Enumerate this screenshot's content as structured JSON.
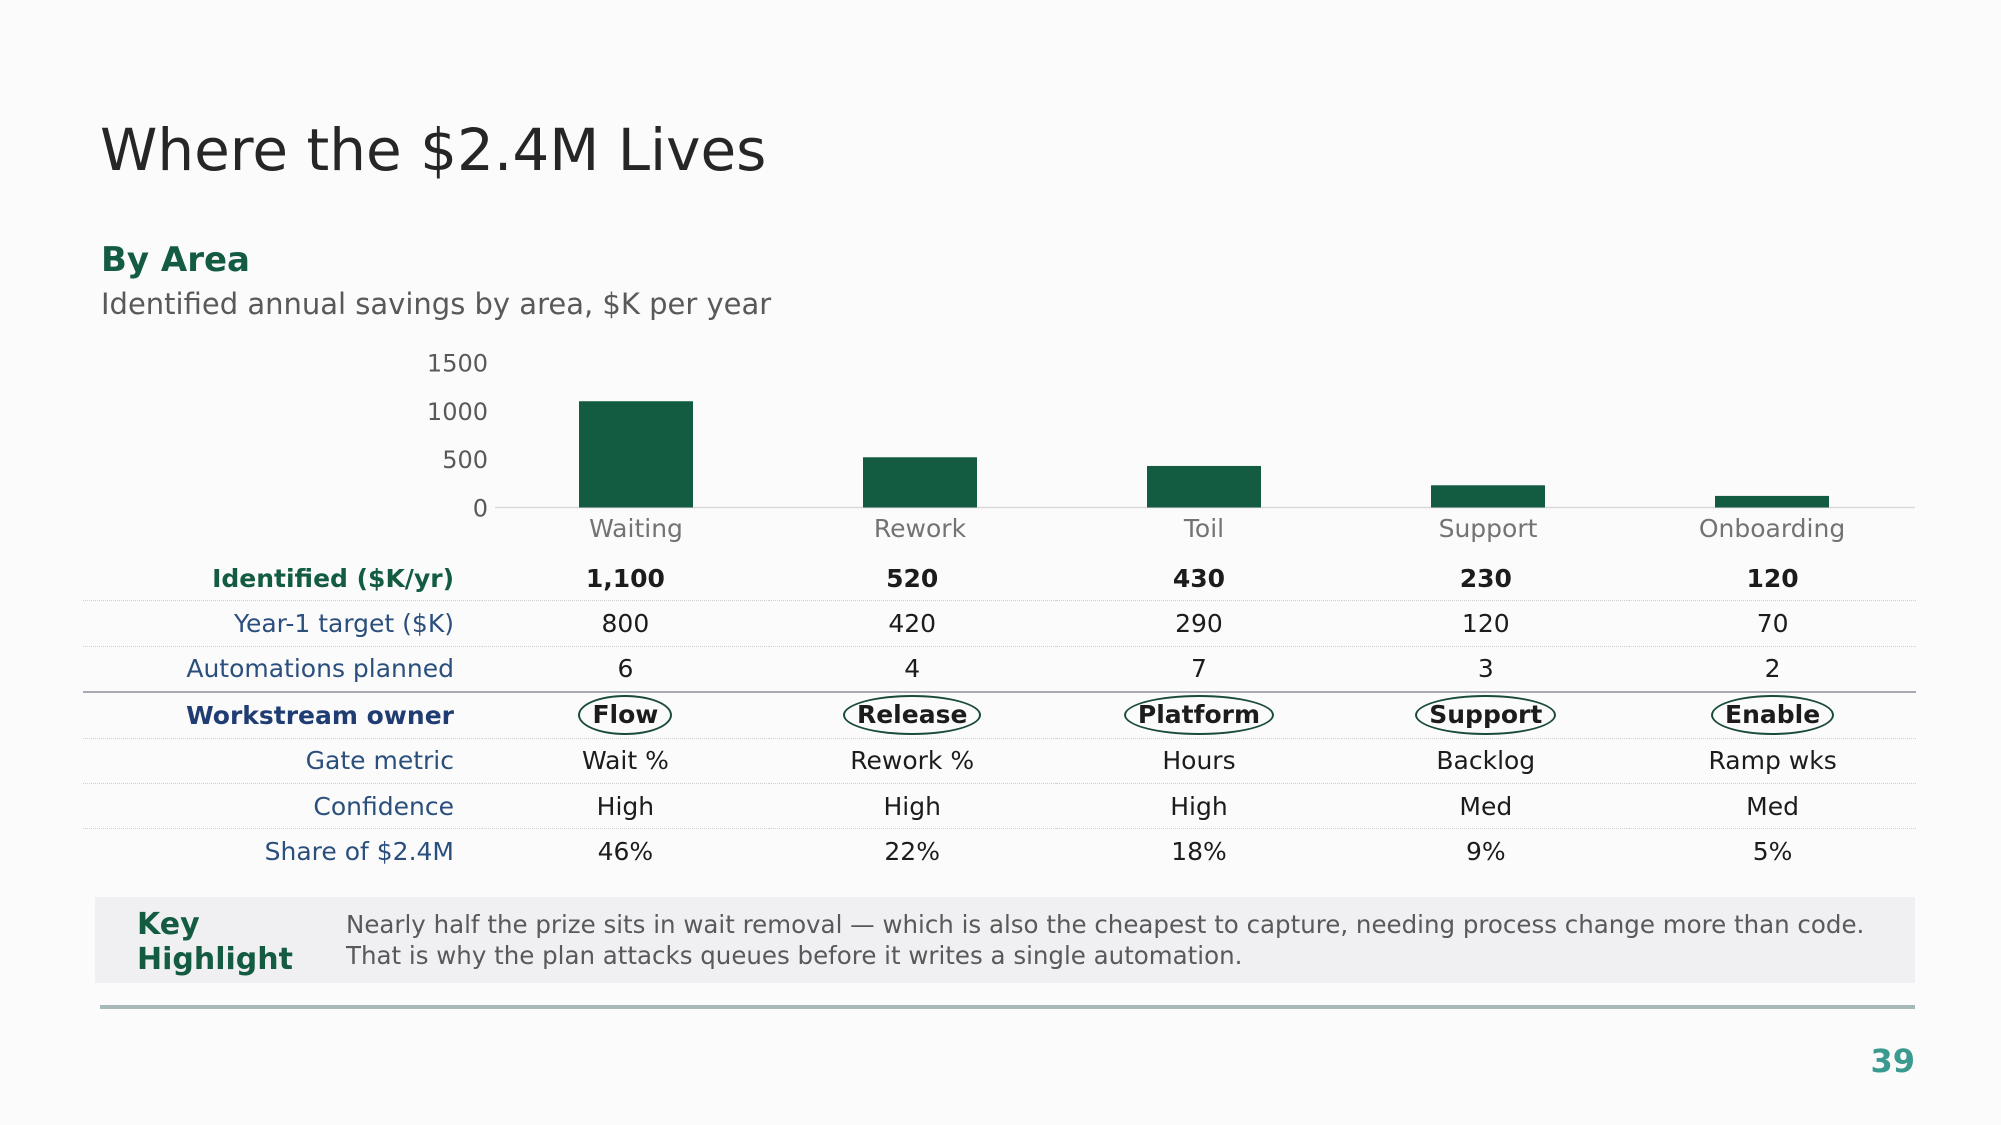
{
  "slide": {
    "title": "Where the $2.4M Lives",
    "section": "By Area",
    "subtitle": "Identified annual savings by area, $K per year",
    "page_number": "39"
  },
  "chart_data": {
    "type": "bar",
    "categories": [
      "Waiting",
      "Rework",
      "Toil",
      "Support",
      "Onboarding"
    ],
    "values": [
      1100,
      520,
      430,
      230,
      120
    ],
    "yticks": [
      "0",
      "500",
      "1000",
      "1500"
    ],
    "ylim": [
      0,
      1500
    ],
    "bar_color": "#135c41"
  },
  "table": {
    "rows": [
      {
        "label": "Identified ($K/yr)",
        "values": [
          "1,100",
          "520",
          "430",
          "230",
          "120"
        ]
      },
      {
        "label": "Year-1 target ($K)",
        "values": [
          "800",
          "420",
          "290",
          "120",
          "70"
        ]
      },
      {
        "label": "Automations planned",
        "values": [
          "6",
          "4",
          "7",
          "3",
          "2"
        ]
      },
      {
        "label": "Workstream owner",
        "values": [
          "Flow",
          "Release",
          "Platform",
          "Support",
          "Enable"
        ]
      },
      {
        "label": "Gate metric",
        "values": [
          "Wait %",
          "Rework %",
          "Hours",
          "Backlog",
          "Ramp wks"
        ]
      },
      {
        "label": "Confidence",
        "values": [
          "High",
          "High",
          "High",
          "Med",
          "Med"
        ]
      },
      {
        "label": "Share of $2.4M",
        "values": [
          "46%",
          "22%",
          "18%",
          "9%",
          "5%"
        ]
      }
    ]
  },
  "highlight": {
    "label": "Key Highlight",
    "text": "Nearly half the prize sits in wait removal — which is also the cheapest to capture, needing process change more than code. That is why the plan attacks queues before it writes a single automation."
  },
  "colors": {
    "accent": "#135c41",
    "row_label": "#2b4f7d",
    "page_number": "#3a9a8f",
    "highlight_bg": "#f0eff2"
  }
}
